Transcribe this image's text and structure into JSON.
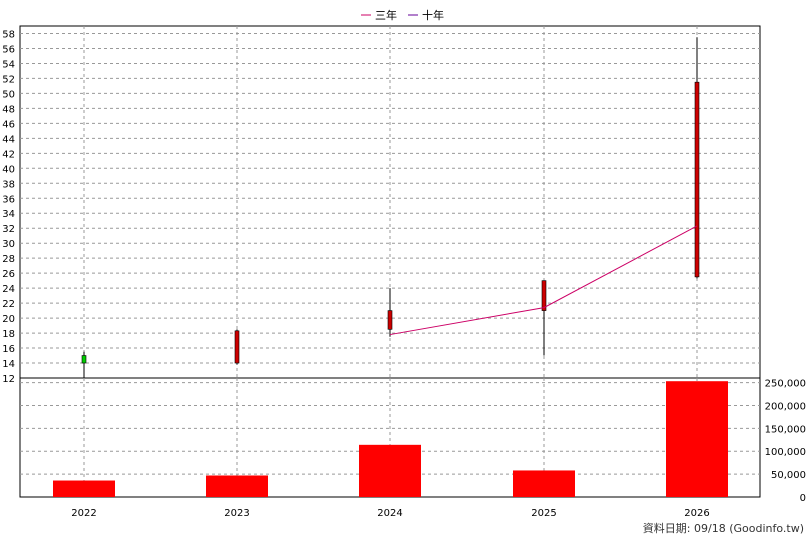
{
  "legend": [
    {
      "name": "三年",
      "color": "#cc0066"
    },
    {
      "name": "十年",
      "color": "#660099"
    }
  ],
  "footer": "資料日期: 09/18  (Goodinfo.tw)",
  "colors": {
    "up": "#cc0000",
    "down": "#00cc00",
    "volume": "#ff0000",
    "grid": "#999999"
  },
  "chart_data": [
    {
      "type": "candlestick",
      "categories": [
        "2022",
        "2023",
        "2024",
        "2025",
        "2026"
      ],
      "ylim": [
        12,
        59
      ],
      "yticks": [
        12,
        14,
        16,
        18,
        20,
        22,
        24,
        26,
        28,
        30,
        32,
        34,
        36,
        38,
        40,
        42,
        44,
        46,
        48,
        50,
        52,
        54,
        56,
        58
      ],
      "ohlc": [
        {
          "open": 15.0,
          "high": 15.5,
          "low": 12.0,
          "close": 14.0
        },
        {
          "open": 14.0,
          "high": 18.5,
          "low": 13.8,
          "close": 18.3
        },
        {
          "open": 18.5,
          "high": 24.0,
          "low": 17.5,
          "close": 21.0
        },
        {
          "open": 21.0,
          "high": 25.0,
          "low": 15.0,
          "close": 25.0
        },
        {
          "open": 25.5,
          "high": 57.5,
          "low": 25.3,
          "close": 51.5
        }
      ],
      "series": [
        {
          "name": "三年",
          "values": [
            null,
            null,
            17.8,
            21.4,
            32.3
          ]
        },
        {
          "name": "十年",
          "values": [
            null,
            null,
            null,
            null,
            null
          ]
        }
      ]
    },
    {
      "type": "bar",
      "categories": [
        "2022",
        "2023",
        "2024",
        "2025",
        "2026"
      ],
      "values": [
        36000,
        47000,
        114000,
        58000,
        253000
      ],
      "ylim": [
        0,
        260000
      ],
      "yticks": [
        "0",
        "50,000",
        "100,000",
        "150,000",
        "200,000",
        "250,000"
      ]
    }
  ]
}
